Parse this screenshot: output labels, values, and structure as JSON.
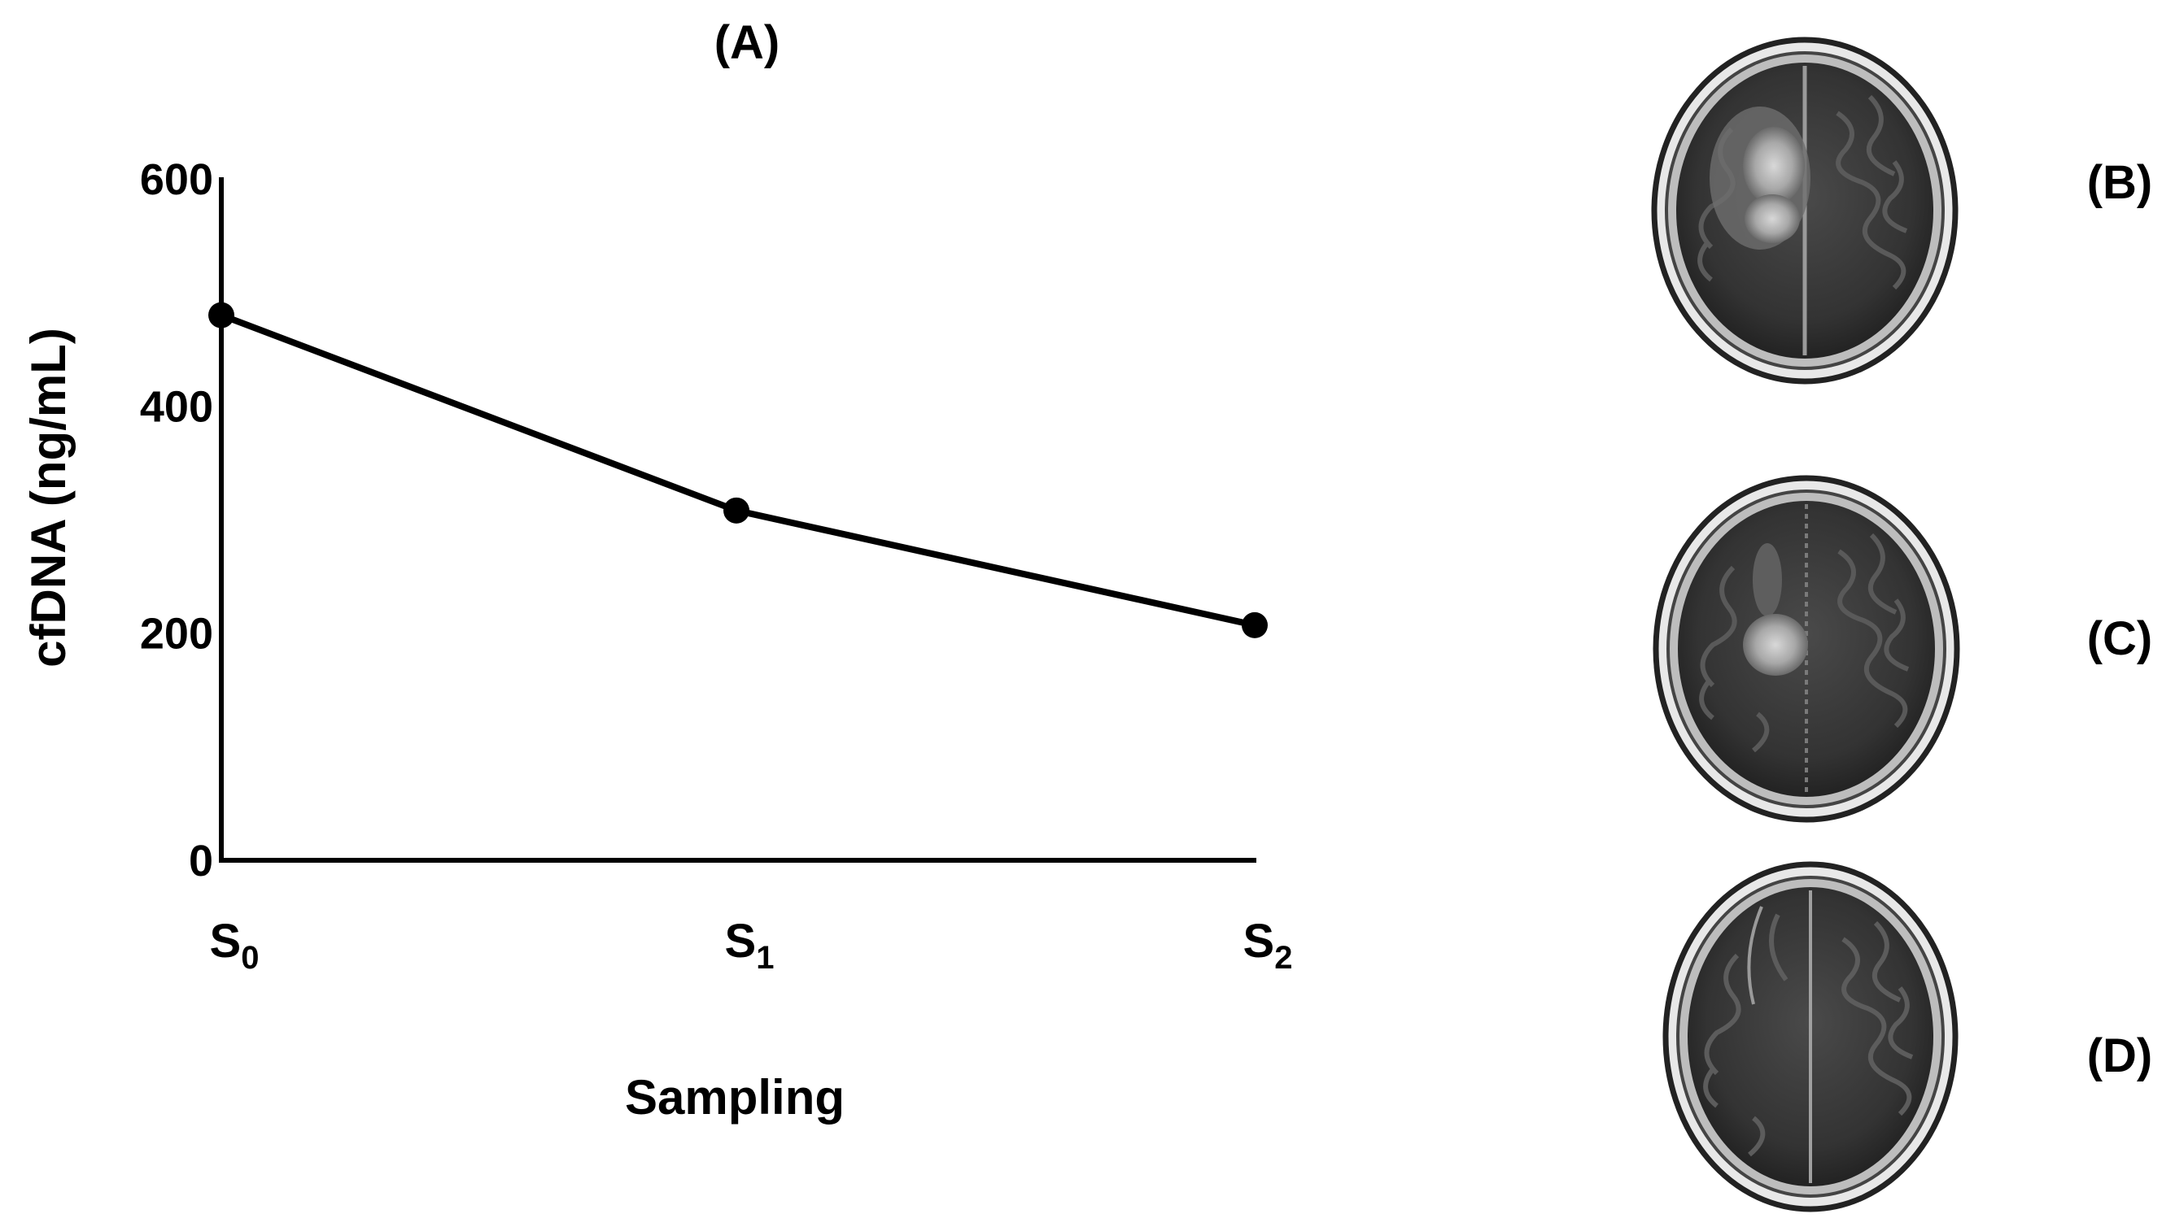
{
  "panels": {
    "a": "(A)",
    "b": "(B)",
    "c": "(C)",
    "d": "(D)"
  },
  "chart_data": {
    "type": "line",
    "categories": [
      "S0",
      "S1",
      "S2"
    ],
    "category_labels": [
      {
        "main": "S",
        "sub": "0"
      },
      {
        "main": "S",
        "sub": "1"
      },
      {
        "main": "S",
        "sub": "2"
      }
    ],
    "series": [
      {
        "values": [
          480,
          308,
          207
        ]
      }
    ],
    "xlabel": "Sampling",
    "ylabel": "cfDNA (ng/mL)",
    "ylim": [
      0,
      600
    ],
    "yticks": [
      0,
      200,
      400,
      600
    ],
    "grid": false,
    "legend": "none",
    "line_color": "#000000",
    "marker": "circle"
  },
  "images": {
    "scan_b": "brain-mri-axial-enhancing-lesion",
    "scan_c": "brain-mri-axial-reduced-lesion",
    "scan_d": "brain-mri-axial-no-lesion"
  }
}
